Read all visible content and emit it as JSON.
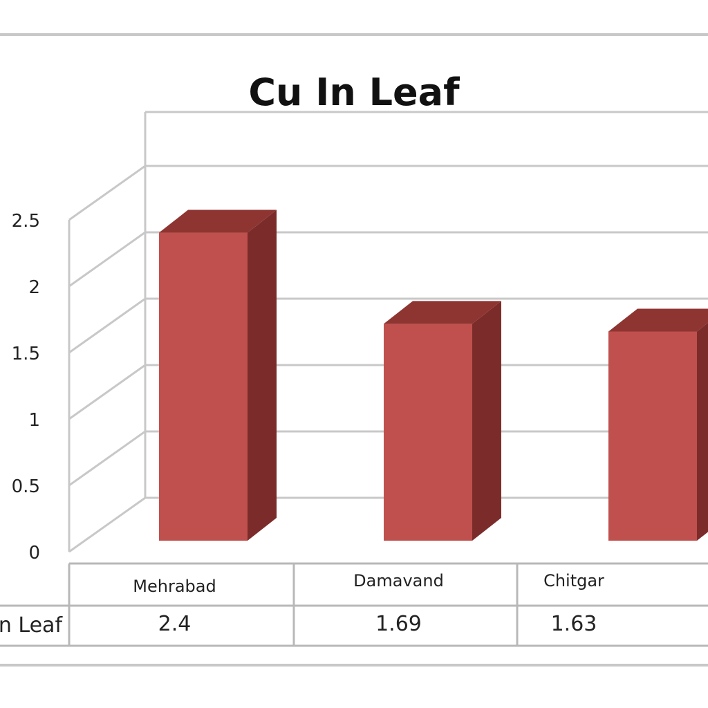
{
  "chart_data": {
    "type": "bar",
    "title": "Cu In Leaf",
    "categories": [
      "Mehrabad",
      "Damavand",
      "Chitgar"
    ],
    "series": [
      {
        "name": "Cu In Leaf",
        "values": [
          2.4,
          1.69,
          1.63
        ]
      }
    ],
    "value_labels": [
      "2.4",
      "1.69",
      "1.63"
    ],
    "row_label": "Cu In Leaf",
    "ylim": [
      0,
      2.5
    ],
    "y_ticks": [
      "0",
      "0.5",
      "1",
      "1.5",
      "2",
      "2.5"
    ],
    "grid": true,
    "style": "3d-column-with-data-table",
    "colors": {
      "bar_front": "#c0504d",
      "bar_side": "#7b2c2a",
      "bar_top": "#8e3532"
    }
  }
}
